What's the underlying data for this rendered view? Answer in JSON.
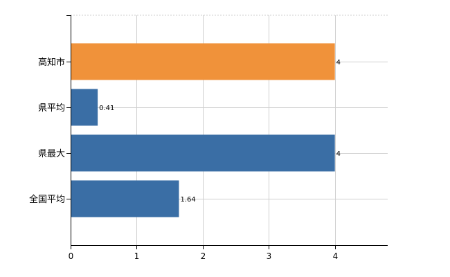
{
  "chart_data": {
    "type": "bar",
    "orientation": "horizontal",
    "categories": [
      "高知市",
      "県平均",
      "県最大",
      "全国平均"
    ],
    "values": [
      4,
      0.41,
      4,
      1.64
    ],
    "value_labels": [
      "4",
      "0.41",
      "4",
      "1.64"
    ],
    "bar_colors": [
      "#f0923a",
      "#3a6ea5",
      "#3a6ea5",
      "#3a6ea5"
    ],
    "xlim": [
      0,
      4.8
    ],
    "x_ticks": [
      0,
      1,
      2,
      3,
      4
    ],
    "x_tick_labels": [
      "0",
      "1",
      "2",
      "3",
      "4"
    ],
    "grid": true,
    "title": "",
    "xlabel": "",
    "ylabel": ""
  }
}
